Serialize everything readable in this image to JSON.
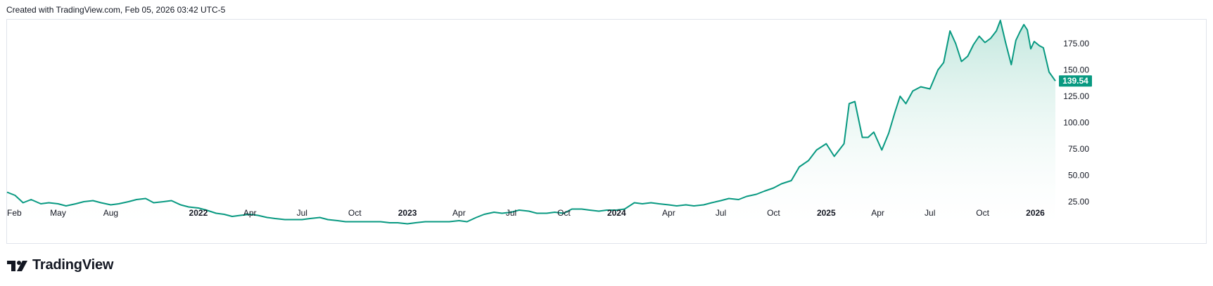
{
  "header": {
    "text": "Created with TradingView.com, Feb 05, 2026 03:42 UTC-5"
  },
  "brand": {
    "name": "TradingView"
  },
  "colors": {
    "line": "#089981",
    "fill_top": "#bfe6dc",
    "fill_bottom": "#ffffff",
    "label_bg": "#089981"
  },
  "chart_data": {
    "type": "area",
    "title": "",
    "xlabel": "",
    "ylabel": "",
    "ylim": [
      0,
      200
    ],
    "y_ticks": [
      25,
      50,
      75,
      100,
      125,
      150,
      175
    ],
    "y_tick_labels": [
      "25.00",
      "50.00",
      "75.00",
      "100.00",
      "125.00",
      "150.00",
      "175.00"
    ],
    "x_range": [
      "2021-02-01",
      "2026-02-05"
    ],
    "x_ticks": [
      {
        "label": "Feb",
        "date": "2021-02-01",
        "bold": false
      },
      {
        "label": "May",
        "date": "2021-05-01",
        "bold": false
      },
      {
        "label": "Aug",
        "date": "2021-08-01",
        "bold": false
      },
      {
        "label": "2022",
        "date": "2022-01-01",
        "bold": true
      },
      {
        "label": "Apr",
        "date": "2022-04-01",
        "bold": false
      },
      {
        "label": "Jul",
        "date": "2022-07-01",
        "bold": false
      },
      {
        "label": "Oct",
        "date": "2022-10-01",
        "bold": false
      },
      {
        "label": "2023",
        "date": "2023-01-01",
        "bold": true
      },
      {
        "label": "Apr",
        "date": "2023-04-01",
        "bold": false
      },
      {
        "label": "Jul",
        "date": "2023-07-01",
        "bold": false
      },
      {
        "label": "Oct",
        "date": "2023-10-01",
        "bold": false
      },
      {
        "label": "2024",
        "date": "2024-01-01",
        "bold": true
      },
      {
        "label": "Apr",
        "date": "2024-04-01",
        "bold": false
      },
      {
        "label": "Jul",
        "date": "2024-07-01",
        "bold": false
      },
      {
        "label": "Oct",
        "date": "2024-10-01",
        "bold": false
      },
      {
        "label": "2025",
        "date": "2025-01-01",
        "bold": true
      },
      {
        "label": "Apr",
        "date": "2025-04-01",
        "bold": false
      },
      {
        "label": "Jul",
        "date": "2025-07-01",
        "bold": false
      },
      {
        "label": "Oct",
        "date": "2025-10-01",
        "bold": false
      },
      {
        "label": "2026",
        "date": "2026-01-01",
        "bold": true
      }
    ],
    "last_value_label": "139.54",
    "series": [
      {
        "values": [
          {
            "x": "2021-02-01",
            "y": 34
          },
          {
            "x": "2021-02-15",
            "y": 31
          },
          {
            "x": "2021-03-01",
            "y": 24
          },
          {
            "x": "2021-03-15",
            "y": 27
          },
          {
            "x": "2021-04-01",
            "y": 23
          },
          {
            "x": "2021-04-15",
            "y": 24
          },
          {
            "x": "2021-05-01",
            "y": 23
          },
          {
            "x": "2021-05-15",
            "y": 21
          },
          {
            "x": "2021-06-01",
            "y": 23
          },
          {
            "x": "2021-06-15",
            "y": 25
          },
          {
            "x": "2021-07-01",
            "y": 26
          },
          {
            "x": "2021-07-15",
            "y": 24
          },
          {
            "x": "2021-08-01",
            "y": 22
          },
          {
            "x": "2021-08-15",
            "y": 23
          },
          {
            "x": "2021-09-01",
            "y": 25
          },
          {
            "x": "2021-09-15",
            "y": 27
          },
          {
            "x": "2021-10-01",
            "y": 28
          },
          {
            "x": "2021-10-15",
            "y": 24
          },
          {
            "x": "2021-11-01",
            "y": 25
          },
          {
            "x": "2021-11-15",
            "y": 26
          },
          {
            "x": "2021-12-01",
            "y": 22
          },
          {
            "x": "2021-12-15",
            "y": 20
          },
          {
            "x": "2022-01-01",
            "y": 19
          },
          {
            "x": "2022-01-15",
            "y": 17
          },
          {
            "x": "2022-02-01",
            "y": 14
          },
          {
            "x": "2022-02-15",
            "y": 13
          },
          {
            "x": "2022-03-01",
            "y": 11
          },
          {
            "x": "2022-03-15",
            "y": 12
          },
          {
            "x": "2022-04-01",
            "y": 13
          },
          {
            "x": "2022-04-15",
            "y": 12
          },
          {
            "x": "2022-05-01",
            "y": 10
          },
          {
            "x": "2022-05-15",
            "y": 9
          },
          {
            "x": "2022-06-01",
            "y": 8
          },
          {
            "x": "2022-06-15",
            "y": 8
          },
          {
            "x": "2022-07-01",
            "y": 8
          },
          {
            "x": "2022-07-15",
            "y": 9
          },
          {
            "x": "2022-08-01",
            "y": 10
          },
          {
            "x": "2022-08-15",
            "y": 8
          },
          {
            "x": "2022-09-01",
            "y": 7
          },
          {
            "x": "2022-09-15",
            "y": 6
          },
          {
            "x": "2022-10-01",
            "y": 6
          },
          {
            "x": "2022-10-15",
            "y": 6
          },
          {
            "x": "2022-11-01",
            "y": 6
          },
          {
            "x": "2022-11-15",
            "y": 6
          },
          {
            "x": "2022-12-01",
            "y": 5
          },
          {
            "x": "2022-12-15",
            "y": 5
          },
          {
            "x": "2023-01-01",
            "y": 4
          },
          {
            "x": "2023-01-15",
            "y": 5
          },
          {
            "x": "2023-02-01",
            "y": 6
          },
          {
            "x": "2023-02-15",
            "y": 6
          },
          {
            "x": "2023-03-01",
            "y": 6
          },
          {
            "x": "2023-03-15",
            "y": 6
          },
          {
            "x": "2023-04-01",
            "y": 7
          },
          {
            "x": "2023-04-15",
            "y": 6
          },
          {
            "x": "2023-05-01",
            "y": 10
          },
          {
            "x": "2023-05-15",
            "y": 13
          },
          {
            "x": "2023-06-01",
            "y": 15
          },
          {
            "x": "2023-06-15",
            "y": 14
          },
          {
            "x": "2023-07-01",
            "y": 15
          },
          {
            "x": "2023-07-15",
            "y": 17
          },
          {
            "x": "2023-08-01",
            "y": 16
          },
          {
            "x": "2023-08-15",
            "y": 14
          },
          {
            "x": "2023-09-01",
            "y": 14
          },
          {
            "x": "2023-09-15",
            "y": 15
          },
          {
            "x": "2023-10-01",
            "y": 14
          },
          {
            "x": "2023-10-15",
            "y": 18
          },
          {
            "x": "2023-11-01",
            "y": 18
          },
          {
            "x": "2023-11-15",
            "y": 17
          },
          {
            "x": "2023-12-01",
            "y": 16
          },
          {
            "x": "2023-12-15",
            "y": 17
          },
          {
            "x": "2024-01-01",
            "y": 17
          },
          {
            "x": "2024-01-15",
            "y": 18
          },
          {
            "x": "2024-02-01",
            "y": 24
          },
          {
            "x": "2024-02-15",
            "y": 23
          },
          {
            "x": "2024-03-01",
            "y": 24
          },
          {
            "x": "2024-03-15",
            "y": 23
          },
          {
            "x": "2024-04-01",
            "y": 22
          },
          {
            "x": "2024-04-15",
            "y": 21
          },
          {
            "x": "2024-05-01",
            "y": 22
          },
          {
            "x": "2024-05-15",
            "y": 21
          },
          {
            "x": "2024-06-01",
            "y": 22
          },
          {
            "x": "2024-06-15",
            "y": 24
          },
          {
            "x": "2024-07-01",
            "y": 26
          },
          {
            "x": "2024-07-15",
            "y": 28
          },
          {
            "x": "2024-08-01",
            "y": 27
          },
          {
            "x": "2024-08-15",
            "y": 30
          },
          {
            "x": "2024-09-01",
            "y": 32
          },
          {
            "x": "2024-09-15",
            "y": 35
          },
          {
            "x": "2024-10-01",
            "y": 38
          },
          {
            "x": "2024-10-15",
            "y": 42
          },
          {
            "x": "2024-11-01",
            "y": 45
          },
          {
            "x": "2024-11-15",
            "y": 58
          },
          {
            "x": "2024-12-01",
            "y": 64
          },
          {
            "x": "2024-12-15",
            "y": 74
          },
          {
            "x": "2025-01-01",
            "y": 80
          },
          {
            "x": "2025-01-15",
            "y": 68
          },
          {
            "x": "2025-02-01",
            "y": 80
          },
          {
            "x": "2025-02-10",
            "y": 118
          },
          {
            "x": "2025-02-20",
            "y": 120
          },
          {
            "x": "2025-03-05",
            "y": 86
          },
          {
            "x": "2025-03-15",
            "y": 86
          },
          {
            "x": "2025-03-25",
            "y": 91
          },
          {
            "x": "2025-04-08",
            "y": 74
          },
          {
            "x": "2025-04-20",
            "y": 90
          },
          {
            "x": "2025-05-01",
            "y": 110
          },
          {
            "x": "2025-05-10",
            "y": 125
          },
          {
            "x": "2025-05-20",
            "y": 118
          },
          {
            "x": "2025-06-01",
            "y": 130
          },
          {
            "x": "2025-06-15",
            "y": 134
          },
          {
            "x": "2025-07-01",
            "y": 132
          },
          {
            "x": "2025-07-15",
            "y": 150
          },
          {
            "x": "2025-07-25",
            "y": 157
          },
          {
            "x": "2025-08-05",
            "y": 187
          },
          {
            "x": "2025-08-15",
            "y": 175
          },
          {
            "x": "2025-08-25",
            "y": 158
          },
          {
            "x": "2025-09-05",
            "y": 163
          },
          {
            "x": "2025-09-15",
            "y": 174
          },
          {
            "x": "2025-09-25",
            "y": 182
          },
          {
            "x": "2025-10-05",
            "y": 176
          },
          {
            "x": "2025-10-15",
            "y": 180
          },
          {
            "x": "2025-10-25",
            "y": 187
          },
          {
            "x": "2025-11-01",
            "y": 197
          },
          {
            "x": "2025-11-10",
            "y": 176
          },
          {
            "x": "2025-11-20",
            "y": 155
          },
          {
            "x": "2025-11-28",
            "y": 178
          },
          {
            "x": "2025-12-05",
            "y": 186
          },
          {
            "x": "2025-12-12",
            "y": 193
          },
          {
            "x": "2025-12-18",
            "y": 188
          },
          {
            "x": "2025-12-24",
            "y": 170
          },
          {
            "x": "2025-12-30",
            "y": 177
          },
          {
            "x": "2026-01-08",
            "y": 173
          },
          {
            "x": "2026-01-15",
            "y": 171
          },
          {
            "x": "2026-01-25",
            "y": 148
          },
          {
            "x": "2026-02-05",
            "y": 139.54
          }
        ]
      }
    ]
  }
}
